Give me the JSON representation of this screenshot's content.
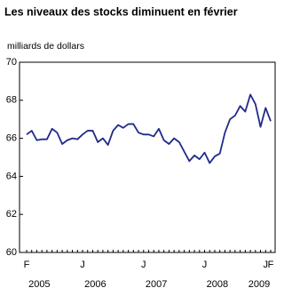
{
  "chart_data": {
    "type": "line",
    "title": "Les niveaux des stocks diminuent en février",
    "y_label": "milliards de dollars",
    "categories": [
      "F",
      null,
      null,
      null,
      null,
      null,
      null,
      null,
      null,
      null,
      null,
      "J",
      null,
      null,
      null,
      null,
      null,
      null,
      null,
      null,
      null,
      null,
      null,
      "J",
      null,
      null,
      null,
      null,
      null,
      null,
      null,
      null,
      null,
      null,
      null,
      "J",
      null,
      null,
      null,
      null,
      null,
      null,
      null,
      null,
      null,
      null,
      null,
      "J",
      "F"
    ],
    "year_labels": [
      "2005",
      "2006",
      "2007",
      "2008",
      "2009"
    ],
    "series": [
      {
        "color": "#1f2a8a",
        "values": [
          66.2,
          66.4,
          65.9,
          65.95,
          65.95,
          66.5,
          66.3,
          65.7,
          65.9,
          66.0,
          65.95,
          66.2,
          66.4,
          66.4,
          65.8,
          66.0,
          65.65,
          66.4,
          66.7,
          66.55,
          66.75,
          66.75,
          66.3,
          66.2,
          66.2,
          66.1,
          66.5,
          65.9,
          65.7,
          66.0,
          65.8,
          65.3,
          64.8,
          65.1,
          64.9,
          65.25,
          64.7,
          65.05,
          65.2,
          66.3,
          67.0,
          67.2,
          67.7,
          67.4,
          68.3,
          67.8,
          66.6,
          67.6,
          66.9
        ]
      }
    ],
    "ylim": [
      60,
      70
    ],
    "yticks": [
      60,
      62,
      64,
      66,
      68,
      70
    ]
  }
}
